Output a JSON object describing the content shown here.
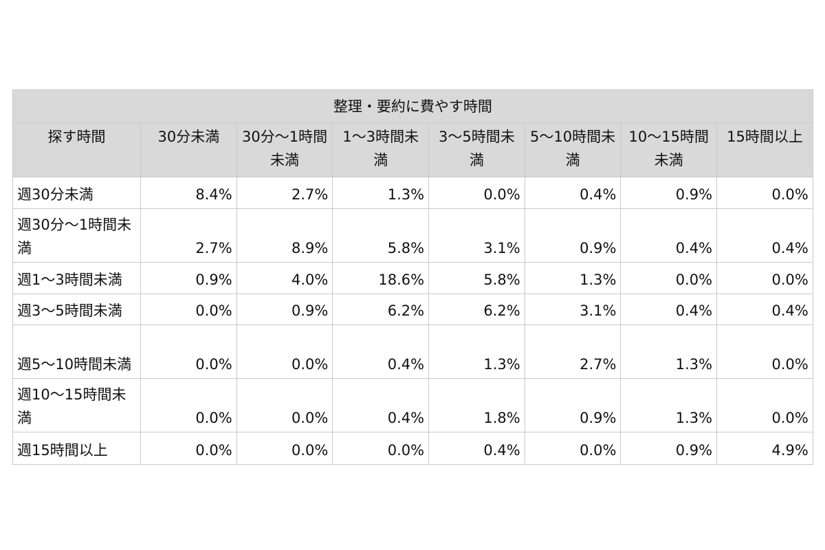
{
  "table": {
    "title": "整理・要約に費やす時間",
    "corner": "探す時間",
    "columns": [
      "30分未満",
      "30分〜1時間未満",
      "1〜3時間未満",
      "3〜5時間未満",
      "5〜10時間未満",
      "10〜15時間未満",
      "15時間以上"
    ],
    "rows": [
      [
        "週30分未満",
        "8.4%",
        "2.7%",
        "1.3%",
        "0.0%",
        "0.4%",
        "0.9%",
        "0.0%"
      ],
      [
        "週30分〜1時間未満",
        "2.7%",
        "8.9%",
        "5.8%",
        "3.1%",
        "0.9%",
        "0.4%",
        "0.4%"
      ],
      [
        "週1〜3時間未満",
        "0.9%",
        "4.0%",
        "18.6%",
        "5.8%",
        "1.3%",
        "0.0%",
        "0.0%"
      ],
      [
        "週3〜5時間未満",
        "0.0%",
        "0.9%",
        "6.2%",
        "6.2%",
        "3.1%",
        "0.4%",
        "0.4%"
      ],
      [
        "週5〜10時間未満",
        "0.0%",
        "0.0%",
        "0.4%",
        "1.3%",
        "2.7%",
        "1.3%",
        "0.0%"
      ],
      [
        "週10〜15時間未満",
        "0.0%",
        "0.0%",
        "0.4%",
        "1.8%",
        "0.9%",
        "1.3%",
        "0.0%"
      ],
      [
        "週15時間以上",
        "0.0%",
        "0.0%",
        "0.0%",
        "0.4%",
        "0.0%",
        "0.9%",
        "4.9%"
      ]
    ]
  }
}
